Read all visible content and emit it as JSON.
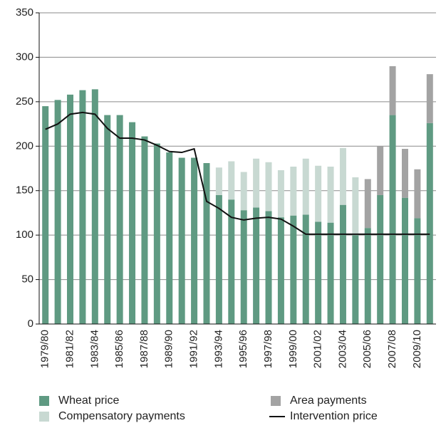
{
  "chart_data": {
    "type": "stacked-bar-line",
    "categories": [
      "1979/80",
      null,
      "1981/82",
      null,
      "1983/84",
      null,
      "1985/86",
      null,
      "1987/88",
      null,
      "1989/90",
      null,
      "1991/92",
      null,
      "1993/94",
      null,
      "1995/96",
      null,
      "1997/98",
      null,
      "1999/00",
      null,
      "2001/02",
      null,
      "2003/04",
      null,
      "2005/06",
      null,
      "2007/08",
      null,
      "2009/10",
      null
    ],
    "series": [
      {
        "name": "Wheat price",
        "color": "#5f9a82",
        "kind": "bar",
        "values": [
          245,
          252,
          258,
          263,
          264,
          235,
          235,
          227,
          211,
          203,
          193,
          187,
          187,
          181,
          145,
          140,
          128,
          131,
          127,
          120,
          122,
          123,
          115,
          114,
          134,
          100,
          108,
          145,
          235,
          142,
          119,
          226
        ]
      },
      {
        "name": "Compensatory payments",
        "color": "#c8d9d2",
        "kind": "bar",
        "values": [
          null,
          null,
          null,
          null,
          null,
          null,
          null,
          null,
          null,
          null,
          null,
          null,
          null,
          null,
          31,
          43,
          43,
          55,
          55,
          53,
          55,
          63,
          63,
          63,
          64,
          65,
          null,
          null,
          null,
          null,
          null,
          null
        ]
      },
      {
        "name": "Area payments",
        "color": "#a3a3a3",
        "kind": "bar",
        "values": [
          null,
          null,
          null,
          null,
          null,
          null,
          null,
          null,
          null,
          null,
          null,
          null,
          null,
          null,
          null,
          null,
          null,
          null,
          null,
          null,
          null,
          null,
          null,
          null,
          null,
          null,
          55,
          55,
          55,
          55,
          55,
          55
        ]
      },
      {
        "name": "Intervention price",
        "color": "#111111",
        "kind": "line",
        "values": [
          219,
          225,
          236,
          238,
          236,
          220,
          209,
          209,
          207,
          201,
          194,
          193,
          197,
          138,
          130,
          120,
          117,
          119,
          120,
          118,
          110,
          101,
          101,
          101,
          101,
          101,
          101,
          101,
          101,
          101,
          101,
          101
        ]
      }
    ],
    "ylim": [
      0,
      350
    ],
    "yticks": [
      0,
      50,
      100,
      150,
      200,
      250,
      300,
      350
    ],
    "grid": true
  }
}
